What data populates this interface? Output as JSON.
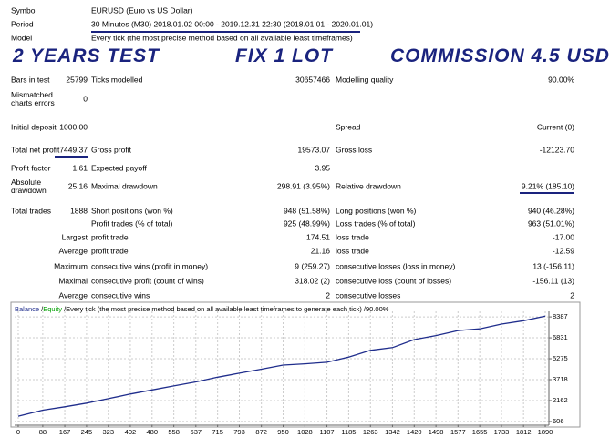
{
  "report": {
    "rows": [
      [
        "Symbol",
        "EURUSD (Euro vs US Dollar)"
      ],
      [
        "Period",
        "30 Minutes (M30) 2018.01.02 00:00 - 2019.12.31 22:30 (2018.01.01 - 2020.01.01)"
      ],
      [
        "Model",
        "Every tick (the most precise method based on all available least timeframes)"
      ],
      [
        "Bars in test",
        "25799",
        "Ticks modelled",
        "30657466",
        "Modelling quality",
        "90.00%"
      ],
      [
        "Mismatched charts errors",
        "0"
      ],
      [
        "Initial deposit",
        "1000.00",
        "Spread",
        "Current (0)"
      ],
      [
        "Total net profit",
        "7449.37",
        "Gross profit",
        "19573.07",
        "Gross loss",
        "-12123.70"
      ],
      [
        "Profit factor",
        "1.61",
        "Expected payoff",
        "3.95"
      ],
      [
        "Absolute drawdown",
        "25.16",
        "Maximal drawdown",
        "298.91 (3.95%)",
        "Relative drawdown",
        "9.21% (185.10)"
      ],
      [
        "Total trades",
        "1888",
        "Short positions (won %)",
        "948 (51.58%)",
        "Long positions (won %)",
        "940 (46.28%)"
      ],
      [
        "Profit trades (% of total)",
        "925 (48.99%)",
        "Loss trades (% of total)",
        "963 (51.01%)"
      ],
      [
        "Largest",
        "profit trade",
        "174.51",
        "loss trade",
        "-17.00"
      ],
      [
        "Average",
        "profit trade",
        "21.16",
        "loss trade",
        "-12.59"
      ],
      [
        "Maximum",
        "consecutive wins (profit in money)",
        "9 (259.27)",
        "consecutive losses (loss in money)",
        "13 (-156.11)"
      ],
      [
        "Maximal",
        "consecutive profit (count of wins)",
        "318.02 (2)",
        "consecutive loss (count of losses)",
        "-156.11 (13)"
      ],
      [
        "Average",
        "consecutive wins",
        "2",
        "consecutive losses",
        "2"
      ]
    ],
    "banner": [
      "2 YEARS TEST",
      "FIX 1 LOT",
      "COMMISSION 4.5 USD"
    ]
  },
  "chart_data": {
    "type": "line",
    "legend_separator": "/",
    "extra_legend": {
      "name": "Equity",
      "color": "#00a000"
    },
    "legend_note": "Every tick (the most precise method based on all available least timeframes to generate each tick)",
    "legend_quality": "90.00%",
    "x": [
      0,
      88,
      167,
      245,
      323,
      402,
      480,
      558,
      637,
      715,
      793,
      872,
      950,
      1028,
      1107,
      1185,
      1263,
      1342,
      1420,
      1498,
      1577,
      1655,
      1733,
      1812,
      1890
    ],
    "series": [
      {
        "name": "Balance",
        "color": "#1f2d8c",
        "values": [
          1000,
          1450,
          1700,
          1970,
          2300,
          2650,
          2950,
          3250,
          3550,
          3900,
          4200,
          4500,
          4800,
          4900,
          5010,
          5400,
          5900,
          6100,
          6700,
          7000,
          7370,
          7500,
          7850,
          8100,
          8449
        ]
      }
    ],
    "xlim": [
      -13,
      1903
    ],
    "xticks": [
      0,
      88,
      167,
      245,
      323,
      402,
      480,
      558,
      637,
      715,
      793,
      872,
      950,
      1028,
      1107,
      1185,
      1263,
      1342,
      1420,
      1498,
      1577,
      1655,
      1733,
      1812,
      1890
    ],
    "ylim": [
      330,
      8800
    ],
    "yticks": [
      8387,
      6831,
      5275,
      3718,
      2162,
      606
    ],
    "grid": true
  }
}
